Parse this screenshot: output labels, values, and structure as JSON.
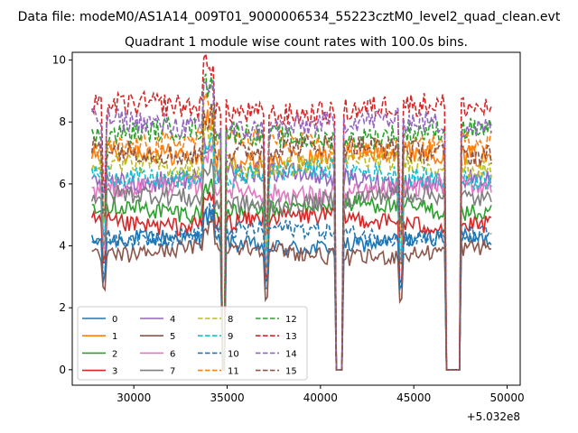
{
  "chart_data": {
    "type": "line",
    "suptitle": "Data file: modeM0/AS1A14_009T01_9000006534_55223cztM0_level2_quad_clean.evt",
    "title": "Quadrant 1 module wise count rates with 100.0s bins.",
    "xlabel": "",
    "ylabel": "",
    "x_offset_label": "+5.032e8",
    "xlim": [
      26700,
      50700
    ],
    "ylim": [
      -0.5,
      10.25
    ],
    "x_ticks": [
      30000,
      35000,
      40000,
      45000,
      50000
    ],
    "x_tick_labels": [
      "30000",
      "35000",
      "40000",
      "45000",
      "50000"
    ],
    "y_ticks": [
      0,
      2,
      4,
      6,
      8,
      10
    ],
    "y_tick_labels": [
      "0",
      "2",
      "4",
      "6",
      "8",
      "10"
    ],
    "x_start": 27750,
    "x_end": 49150,
    "bin": 100,
    "gaps": [
      [
        34750,
        34850
      ],
      [
        40800,
        41200
      ],
      [
        46750,
        47450
      ]
    ],
    "dips": [
      [
        28400,
        0.7
      ],
      [
        37100,
        0.62
      ],
      [
        44300,
        0.62
      ]
    ],
    "bump": [
      33750,
      34300,
      1.18
    ],
    "legend": {
      "placement": "lower-left",
      "columns": 4,
      "rows": 4
    },
    "series": [
      {
        "name": "0",
        "color": "#1f77b4",
        "dash": "solid",
        "level": 4.1
      },
      {
        "name": "1",
        "color": "#ff7f0e",
        "dash": "solid",
        "level": 6.9
      },
      {
        "name": "2",
        "color": "#2ca02c",
        "dash": "solid",
        "level": 5.2
      },
      {
        "name": "3",
        "color": "#d62728",
        "dash": "solid",
        "level": 4.8
      },
      {
        "name": "4",
        "color": "#9467bd",
        "dash": "solid",
        "level": 6.2
      },
      {
        "name": "5",
        "color": "#8c564b",
        "dash": "solid",
        "level": 3.8
      },
      {
        "name": "6",
        "color": "#e377c2",
        "dash": "solid",
        "level": 5.8
      },
      {
        "name": "7",
        "color": "#7f7f7f",
        "dash": "solid",
        "level": 5.5
      },
      {
        "name": "8",
        "color": "#bcbd22",
        "dash": "dashed",
        "level": 6.6
      },
      {
        "name": "9",
        "color": "#17becf",
        "dash": "dashed",
        "level": 6.3
      },
      {
        "name": "10",
        "color": "#1f77b4",
        "dash": "dashed",
        "level": 4.4
      },
      {
        "name": "11",
        "color": "#ff7f0e",
        "dash": "dashed",
        "level": 7.3
      },
      {
        "name": "12",
        "color": "#2ca02c",
        "dash": "dashed",
        "level": 7.6
      },
      {
        "name": "13",
        "color": "#d62728",
        "dash": "dashed",
        "level": 8.4
      },
      {
        "name": "14",
        "color": "#9467bd",
        "dash": "dashed",
        "level": 7.9
      },
      {
        "name": "15",
        "color": "#8c564b",
        "dash": "dashed",
        "level": 7.1
      }
    ]
  }
}
